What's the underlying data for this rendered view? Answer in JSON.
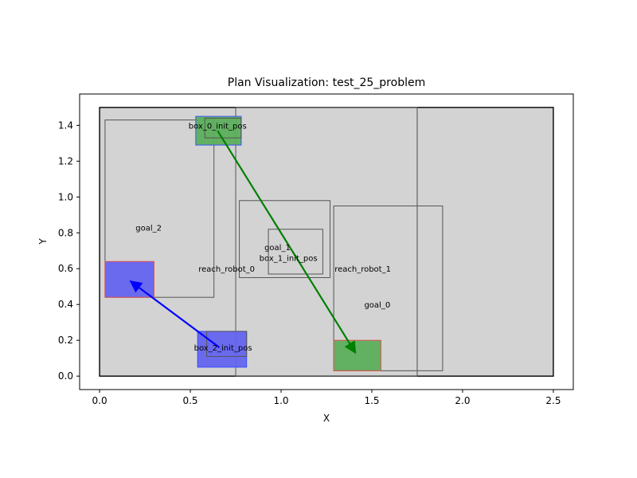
{
  "chart_data": {
    "type": "scatter",
    "title": "Plan Visualization: test_25_problem",
    "xlabel": "X",
    "ylabel": "Y",
    "xlim": [
      -0.11,
      2.61
    ],
    "ylim": [
      -0.075,
      1.575
    ],
    "xticks": [
      0.0,
      0.5,
      1.0,
      1.5,
      2.0,
      2.5
    ],
    "yticks": [
      0.0,
      0.2,
      0.4,
      0.6,
      0.8,
      1.0,
      1.2,
      1.4
    ],
    "xtick_labels": [
      "0.0",
      "0.5",
      "1.0",
      "1.5",
      "2.0",
      "2.5"
    ],
    "ytick_labels": [
      "0.0",
      "0.2",
      "0.4",
      "0.6",
      "0.8",
      "1.0",
      "1.2",
      "1.4"
    ],
    "grid": false,
    "workspace": {
      "x": [
        0,
        2.5
      ],
      "y": [
        0,
        1.5
      ]
    },
    "colors": {
      "workspace_fill": "#d3d3d3",
      "region_edge": "#555555",
      "green_box": "#5cae5c",
      "green_arrow": "#008000",
      "blue_box": "#6464f0",
      "blue_arrow": "#0000ff",
      "red_edge": "#e05050",
      "blue_edge": "#3a50ff"
    },
    "regions": [
      {
        "name": "reach_robot_0",
        "x0": 0.75,
        "x1": 1.75,
        "y0": 0.0,
        "y1": 1.5,
        "label_at": [
          0.7,
          0.6
        ]
      },
      {
        "name": "reach_robot_1",
        "x0": 1.75,
        "x1": 1.75,
        "y0": 0.0,
        "y1": 1.5,
        "label_at": [
          1.45,
          0.6
        ]
      },
      {
        "name": "goal_2",
        "x0": 0.03,
        "x1": 0.63,
        "y0": 0.44,
        "y1": 1.43,
        "label_at": [
          0.27,
          0.83
        ]
      },
      {
        "name": "goal_1",
        "x0": 0.77,
        "x1": 1.27,
        "y0": 0.55,
        "y1": 0.98,
        "label_at": [
          0.98,
          0.72
        ]
      },
      {
        "name": "goal_0",
        "x0": 1.29,
        "x1": 1.89,
        "y0": 0.03,
        "y1": 0.95,
        "label_at": [
          1.53,
          0.4
        ]
      },
      {
        "name": "box_1_init_pos",
        "x0": 0.93,
        "x1": 1.23,
        "y0": 0.57,
        "y1": 0.82,
        "label_at": [
          1.04,
          0.67
        ]
      }
    ],
    "boxes": [
      {
        "name": "box_0_init_pos",
        "kind": "init",
        "color": "green",
        "edge": "blue",
        "x0": 0.53,
        "x1": 0.78,
        "y0": 1.29,
        "y1": 1.45,
        "inner": [
          0.58,
          0.78,
          1.33,
          1.44
        ],
        "label_at": [
          0.65,
          1.4
        ]
      },
      {
        "name": "box_0_goal",
        "kind": "goal",
        "color": "green",
        "edge": "red",
        "x0": 1.29,
        "x1": 1.55,
        "y0": 0.03,
        "y1": 0.2
      },
      {
        "name": "box_2_init_pos",
        "kind": "init",
        "color": "blue",
        "edge": "blue",
        "x0": 0.54,
        "x1": 0.81,
        "y0": 0.05,
        "y1": 0.25,
        "inner": [
          0.59,
          0.81,
          0.11,
          0.25
        ],
        "label_at": [
          0.68,
          0.16
        ]
      },
      {
        "name": "box_2_goal",
        "kind": "goal",
        "color": "blue",
        "edge": "red",
        "x0": 0.03,
        "x1": 0.3,
        "y0": 0.44,
        "y1": 0.64
      }
    ],
    "labels": [
      {
        "text": "box_0_init_pos",
        "at": [
          0.65,
          1.4
        ]
      },
      {
        "text": "goal_2",
        "at": [
          0.27,
          0.83
        ]
      },
      {
        "text": "goal_1",
        "at": [
          0.98,
          0.72
        ]
      },
      {
        "text": "box_1_init_pos",
        "at": [
          1.04,
          0.66
        ]
      },
      {
        "text": "reach_robot_0",
        "at": [
          0.7,
          0.6
        ]
      },
      {
        "text": "reach_robot_1",
        "at": [
          1.45,
          0.6
        ]
      },
      {
        "text": "goal_0",
        "at": [
          1.53,
          0.4
        ]
      },
      {
        "text": "box_2_init_pos",
        "at": [
          0.68,
          0.16
        ]
      }
    ],
    "arrows": [
      {
        "name": "box_0_path",
        "from": [
          0.65,
          1.37
        ],
        "to": [
          1.41,
          0.13
        ],
        "color": "green"
      },
      {
        "name": "box_2_path",
        "from": [
          0.66,
          0.16
        ],
        "to": [
          0.17,
          0.53
        ],
        "color": "blue"
      }
    ]
  }
}
